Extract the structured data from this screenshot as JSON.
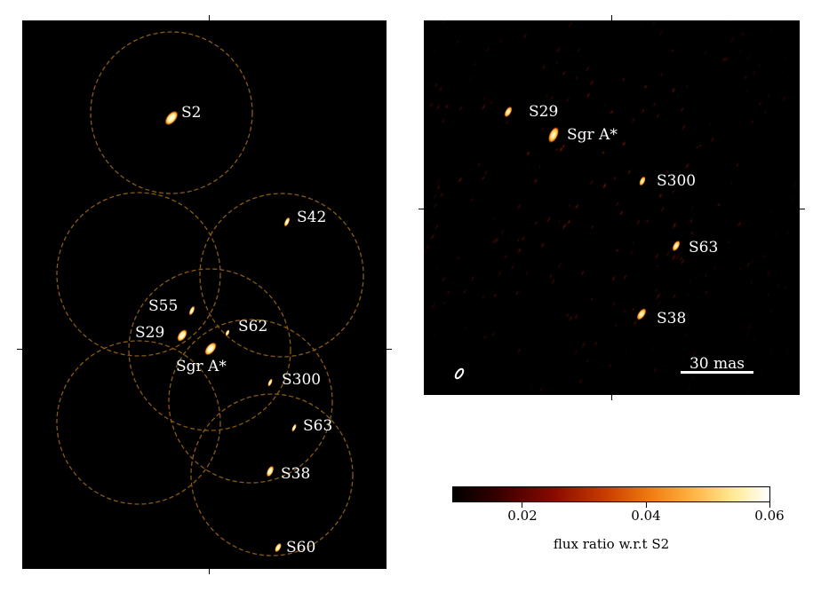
{
  "left_panel": {
    "stars": [
      {
        "label": "S2"
      },
      {
        "label": "S42"
      },
      {
        "label": "S55"
      },
      {
        "label": "S29"
      },
      {
        "label": "S62"
      },
      {
        "label": "Sgr A*"
      },
      {
        "label": "S300"
      },
      {
        "label": "S63"
      },
      {
        "label": "S38"
      },
      {
        "label": "S60"
      }
    ]
  },
  "right_panel": {
    "stars": [
      {
        "label": "S29"
      },
      {
        "label": "Sgr A*"
      },
      {
        "label": "S300"
      },
      {
        "label": "S63"
      },
      {
        "label": "S38"
      }
    ],
    "scalebar_label": "30 mas"
  },
  "colorbar": {
    "title": "flux ratio w.r.t S2",
    "ticks": [
      "0.02",
      "0.04",
      "0.06"
    ],
    "colormap": "afmhot"
  },
  "colors": {
    "circle": "#8a5a14",
    "star_core": "#ffffe0",
    "star_glow": "#ff9a20",
    "label": "#ffffff"
  }
}
